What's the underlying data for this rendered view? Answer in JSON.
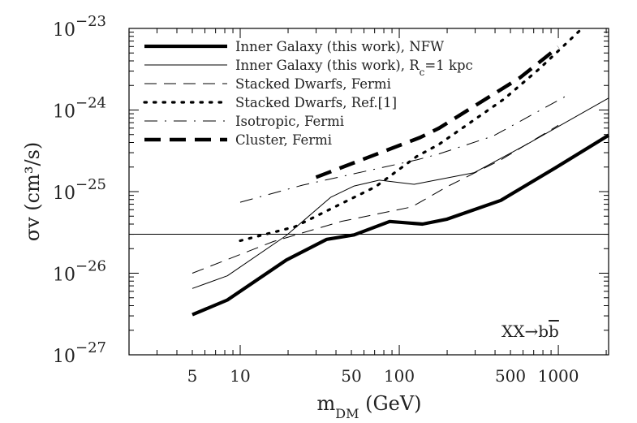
{
  "chart_data": {
    "type": "line",
    "title": "",
    "xlabel": "m_DM (GeV)",
    "ylabel": "σv (cm³/s)",
    "x_scale": "log",
    "y_scale": "log",
    "xlim": [
      2,
      2070
    ],
    "ylim": [
      1e-27,
      1e-23
    ],
    "grid": false,
    "legend_placement": "top-left",
    "x_tick_labels": [
      {
        "value": 5,
        "label": "5"
      },
      {
        "value": 10,
        "label": "10"
      },
      {
        "value": 50,
        "label": "50"
      },
      {
        "value": 100,
        "label": "100"
      },
      {
        "value": 500,
        "label": "500"
      },
      {
        "value": 1000,
        "label": "1000"
      }
    ],
    "y_tick_labels": [
      {
        "value": 1e-23,
        "base": "10",
        "exp": "−23"
      },
      {
        "value": 1e-24,
        "base": "10",
        "exp": "−24"
      },
      {
        "value": 1e-25,
        "base": "10",
        "exp": "−25"
      },
      {
        "value": 1e-26,
        "base": "10",
        "exp": "−26"
      },
      {
        "value": 1e-27,
        "base": "10",
        "exp": "−27"
      }
    ],
    "annotation": {
      "text": "XX→b",
      "overlined": "b"
    },
    "reference_line": {
      "y": 3e-26,
      "color": "#000000"
    },
    "series": [
      {
        "name": "Inner Galaxy (this work), NFW",
        "style": "thick-solid",
        "color": "#000000",
        "x": [
          5,
          8.3,
          19.5,
          35,
          52,
          87,
          140,
          200,
          435,
          955,
          2070
        ],
        "y": [
          3.1e-27,
          4.7e-27,
          1.45e-26,
          2.6e-26,
          2.95e-26,
          4.3e-26,
          4e-26,
          4.6e-26,
          7.8e-26,
          1.95e-25,
          4.9e-25
        ]
      },
      {
        "name": "Inner Galaxy (this work), R_c=1 kpc",
        "style": "thin-solid",
        "color": "#000000",
        "x": [
          5,
          8.3,
          19.5,
          37,
          52,
          75,
          124,
          295,
          650,
          2070
        ],
        "y": [
          6.5e-27,
          9.3e-27,
          2.9e-26,
          8.5e-26,
          1.17e-25,
          1.38e-25,
          1.23e-25,
          1.7e-25,
          3.9e-25,
          1.4e-24
        ]
      },
      {
        "name": "Stacked Dwarfs, Fermi",
        "style": "thin-dashed",
        "color": "#000000",
        "x": [
          5,
          16.2,
          43,
          120,
          200,
          435,
          1000
        ],
        "y": [
          1e-26,
          2.45e-26,
          4.3e-26,
          6.5e-26,
          1.15e-25,
          2.45e-25,
          6.5e-25
        ]
      },
      {
        "name": "Stacked Dwarfs, Ref.[1]",
        "style": "dotted",
        "color": "#000000",
        "x": [
          10,
          22,
          71,
          129,
          178,
          455,
          760,
          1410
        ],
        "y": [
          2.5e-26,
          3.7e-26,
          1.15e-25,
          2.7e-25,
          3.8e-25,
          1.36e-24,
          3.2e-24,
          1e-23
        ]
      },
      {
        "name": "Isotropic, Fermi",
        "style": "dash-dot",
        "color": "#000000",
        "x": [
          10,
          24.7,
          129,
          178,
          390,
          1200
        ],
        "y": [
          7.4e-26,
          1.2e-25,
          2.45e-25,
          2.9e-25,
          4.8e-25,
          1.6e-24
        ]
      },
      {
        "name": "Cluster, Fermi",
        "style": "thick-dashed",
        "color": "#000000",
        "x": [
          30,
          135,
          178,
          575,
          1000
        ],
        "y": [
          1.5e-25,
          4.6e-25,
          6e-25,
          2.5e-24,
          5.9e-24
        ]
      }
    ]
  }
}
